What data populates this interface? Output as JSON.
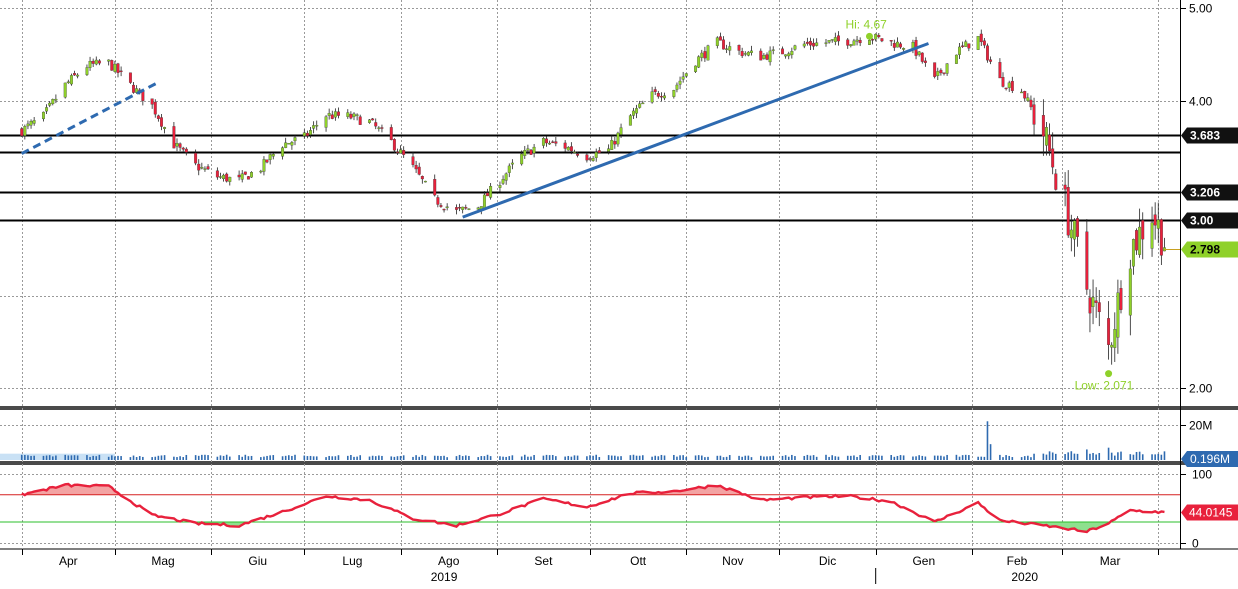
{
  "chart_data": [
    {
      "type": "candlestick",
      "panel": "price",
      "scale": "log",
      "ylim": [
        1.92,
        5.0
      ],
      "yticks": [
        "5.00",
        "4.00",
        "2.00"
      ],
      "x_months": [
        "Apr",
        "Mag",
        "Giu",
        "Lug",
        "Ago",
        "Set",
        "Ott",
        "Nov",
        "Dic",
        "Gen",
        "Feb",
        "Mar"
      ],
      "x_years": [
        "2019",
        "2020"
      ],
      "grid": true,
      "colors": {
        "up": "#8fd12a",
        "down": "#e8213c",
        "trendline": "#2e6ab0"
      },
      "anchors": [
        [
          "2019-04-01",
          3.72
        ],
        [
          "2019-04-08",
          3.85
        ],
        [
          "2019-04-15",
          4.15
        ],
        [
          "2019-04-22",
          4.35
        ],
        [
          "2019-04-29",
          4.38
        ],
        [
          "2019-05-06",
          4.15
        ],
        [
          "2019-05-13",
          3.95
        ],
        [
          "2019-05-20",
          3.6
        ],
        [
          "2019-05-27",
          3.42
        ],
        [
          "2019-06-03",
          3.33
        ],
        [
          "2019-06-10",
          3.3
        ],
        [
          "2019-06-17",
          3.4
        ],
        [
          "2019-06-24",
          3.6
        ],
        [
          "2019-07-01",
          3.66
        ],
        [
          "2019-07-08",
          3.86
        ],
        [
          "2019-07-15",
          3.85
        ],
        [
          "2019-07-22",
          3.8
        ],
        [
          "2019-07-29",
          3.62
        ],
        [
          "2019-08-05",
          3.4
        ],
        [
          "2019-08-12",
          3.15
        ],
        [
          "2019-08-19",
          3.06
        ],
        [
          "2019-08-26",
          3.1
        ],
        [
          "2019-09-02",
          3.3
        ],
        [
          "2019-09-09",
          3.5
        ],
        [
          "2019-09-16",
          3.62
        ],
        [
          "2019-09-23",
          3.58
        ],
        [
          "2019-09-30",
          3.5
        ],
        [
          "2019-10-07",
          3.55
        ],
        [
          "2019-10-14",
          3.85
        ],
        [
          "2019-10-21",
          4.05
        ],
        [
          "2019-10-28",
          4.12
        ],
        [
          "2019-11-04",
          4.4
        ],
        [
          "2019-11-11",
          4.6
        ],
        [
          "2019-11-18",
          4.5
        ],
        [
          "2019-11-25",
          4.45
        ],
        [
          "2019-12-02",
          4.5
        ],
        [
          "2019-12-09",
          4.58
        ],
        [
          "2019-12-16",
          4.6
        ],
        [
          "2019-12-23",
          4.62
        ],
        [
          "2019-12-30",
          4.67
        ],
        [
          "2020-01-06",
          4.6
        ],
        [
          "2020-01-13",
          4.55
        ],
        [
          "2020-01-20",
          4.2
        ],
        [
          "2020-01-27",
          4.5
        ],
        [
          "2020-02-03",
          4.65
        ],
        [
          "2020-02-10",
          4.2
        ],
        [
          "2020-02-17",
          4.1
        ],
        [
          "2020-02-24",
          3.7
        ],
        [
          "2020-03-02",
          3.1
        ],
        [
          "2020-03-09",
          2.55
        ],
        [
          "2020-03-16",
          2.2
        ],
        [
          "2020-03-23",
          2.8
        ],
        [
          "2020-03-30",
          3.05
        ],
        [
          "2020-04-04",
          2.798
        ]
      ],
      "horizontal_levels": [
        {
          "value": 3.683,
          "label": "3.683"
        },
        {
          "value": 3.53,
          "label": ""
        },
        {
          "value": 3.206,
          "label": "3.206"
        },
        {
          "value": 3.0,
          "label": "3.00"
        }
      ],
      "last": {
        "value": 2.798,
        "label": "2.798",
        "color": "#8fd12a"
      },
      "annotations": [
        {
          "text": "Hi: 4.67",
          "date": "2019-12-30",
          "value": 4.67,
          "color": "#8fd12a"
        },
        {
          "text": "Low: 2.071",
          "date": "2020-03-16",
          "value": 2.071,
          "color": "#8fd12a"
        }
      ],
      "trendlines": [
        {
          "from": [
            "2019-04-01",
            3.52
          ],
          "to": [
            "2019-05-15",
            4.18
          ],
          "style": "dashed"
        },
        {
          "from": [
            "2019-08-21",
            3.02
          ],
          "to": [
            "2020-01-18",
            4.59
          ],
          "style": "solid"
        }
      ]
    },
    {
      "type": "bar",
      "panel": "volume",
      "ylim": [
        0,
        25
      ],
      "yticks": [
        "20M"
      ],
      "last": {
        "value": 0.196,
        "label": "0.196M",
        "color": "#2e6ab0"
      },
      "color": "#2e6ab0",
      "spikes": [
        [
          "2020-02-06",
          22
        ],
        [
          "2020-02-07",
          9
        ],
        [
          "2020-03-09",
          6
        ],
        [
          "2020-03-16",
          7
        ]
      ]
    },
    {
      "type": "line",
      "panel": "oscillator",
      "ylim": [
        -8,
        112
      ],
      "yticks": [
        "100",
        "0"
      ],
      "upper_band": 70,
      "lower_band": 30,
      "last": {
        "value": 44.0145,
        "label": "44.0145",
        "color": "#e8213c"
      },
      "colors": {
        "line": "#e8213c",
        "upper": "#d62020",
        "lower": "#2bbf2b",
        "fill_upper": "#f3a3a3",
        "fill_lower": "#8ee08e"
      },
      "anchors": [
        [
          "2019-04-01",
          70
        ],
        [
          "2019-04-15",
          84
        ],
        [
          "2019-04-29",
          82
        ],
        [
          "2019-05-13",
          40
        ],
        [
          "2019-05-27",
          28
        ],
        [
          "2019-06-10",
          25
        ],
        [
          "2019-06-24",
          45
        ],
        [
          "2019-07-08",
          68
        ],
        [
          "2019-07-22",
          62
        ],
        [
          "2019-08-05",
          35
        ],
        [
          "2019-08-19",
          25
        ],
        [
          "2019-09-02",
          42
        ],
        [
          "2019-09-16",
          64
        ],
        [
          "2019-09-30",
          52
        ],
        [
          "2019-10-14",
          72
        ],
        [
          "2019-10-28",
          75
        ],
        [
          "2019-11-11",
          84
        ],
        [
          "2019-11-25",
          62
        ],
        [
          "2019-12-09",
          66
        ],
        [
          "2019-12-23",
          68
        ],
        [
          "2020-01-06",
          60
        ],
        [
          "2020-01-20",
          30
        ],
        [
          "2020-02-03",
          58
        ],
        [
          "2020-02-10",
          32
        ],
        [
          "2020-02-24",
          25
        ],
        [
          "2020-03-09",
          16
        ],
        [
          "2020-03-16",
          28
        ],
        [
          "2020-03-23",
          47
        ],
        [
          "2020-04-04",
          44
        ]
      ]
    }
  ]
}
